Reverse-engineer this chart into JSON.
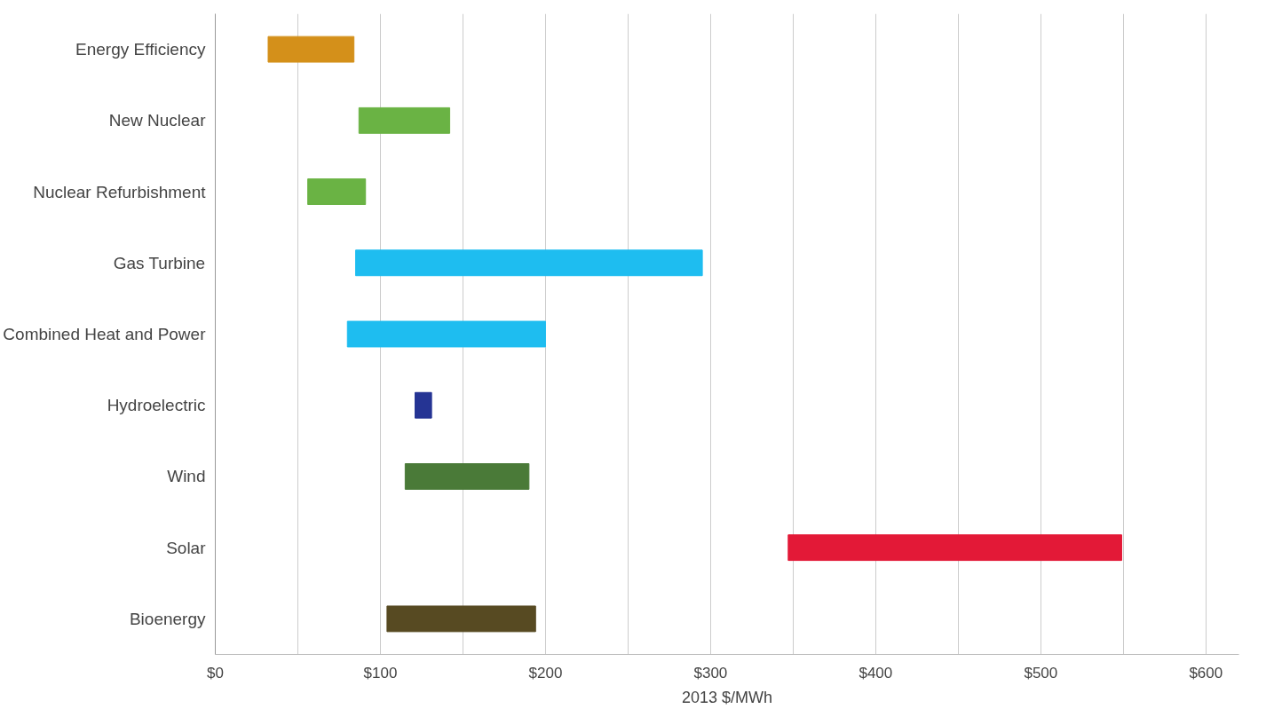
{
  "chart_data": {
    "type": "bar",
    "orientation": "horizontal",
    "xlabel": "2013 $/MWh",
    "categories": [
      "Energy Efficiency",
      "New Nuclear",
      "Nuclear Refurbishment",
      "Gas Turbine",
      "Combined Heat and Power",
      "Hydroelectric",
      "Wind",
      "Solar",
      "Bioenergy"
    ],
    "base": [
      32,
      87,
      56,
      85,
      80,
      121,
      115,
      347,
      104
    ],
    "values": [
      52,
      55,
      35,
      210,
      120,
      10,
      75,
      202,
      90
    ],
    "colors": [
      "#d4901a",
      "#6ab344",
      "#6ab344",
      "#1ebdf0",
      "#1ebdf0",
      "#253494",
      "#4a7a38",
      "#e31937",
      "#574a22"
    ],
    "xlim": [
      0,
      620
    ],
    "xticks": [
      {
        "value": 0,
        "label": "$0"
      },
      {
        "value": 50,
        "label": null
      },
      {
        "value": 100,
        "label": "$100"
      },
      {
        "value": 150,
        "label": null
      },
      {
        "value": 200,
        "label": "$200"
      },
      {
        "value": 250,
        "label": null
      },
      {
        "value": 300,
        "label": "$300"
      },
      {
        "value": 350,
        "label": null
      },
      {
        "value": 400,
        "label": "$400"
      },
      {
        "value": 450,
        "label": null
      },
      {
        "value": 500,
        "label": "$500"
      },
      {
        "value": 550,
        "label": null
      },
      {
        "value": 600,
        "label": "$600"
      }
    ],
    "grid": "x"
  }
}
